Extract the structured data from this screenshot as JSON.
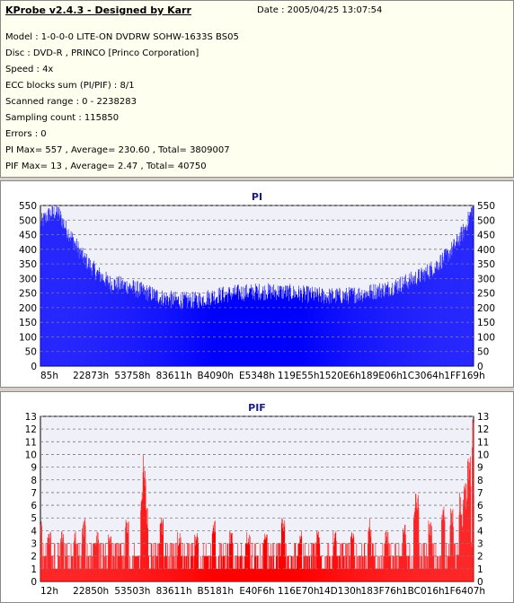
{
  "header": {
    "title": "KProbe v2.4.3 - Designed by Karr",
    "date": "Date : 2005/04/25 13:07:54"
  },
  "info": {
    "model": "Model : 1-0-0-0 LITE-ON DVDRW SOHW-1633S BS05",
    "disc": "Disc : DVD-R , PRINCO [Princo Corporation]",
    "speed": "Speed : 4x",
    "ecc": "ECC blocks sum (PI/PIF) : 8/1",
    "range": "Scanned range : 0 - 2238283",
    "sampling": "Sampling count : 115850",
    "errors": "Errors : 0",
    "pi_summary": "PI Max= 557 , Average= 230.60 , Total= 3809007",
    "pif_summary": "PIF Max= 13 , Average= 2.47 , Total= 40750"
  },
  "colors": {
    "pi_fill": "#0000ff",
    "pif_fill": "#ff0000",
    "plot_bg": "#f0f0f8",
    "grid": "#7a7a7a"
  },
  "chart_data": [
    {
      "type": "area",
      "title": "PI",
      "ylim": [
        0,
        550
      ],
      "yticks": [
        0,
        50,
        100,
        150,
        200,
        250,
        300,
        350,
        400,
        450,
        500,
        550
      ],
      "xticks": [
        "85h",
        "22873h",
        "53758h",
        "83611h",
        "B4090h",
        "E5348h",
        "119E55h",
        "1520E6h",
        "189E06h",
        "1C3064h",
        "1FF169h"
      ],
      "grid": "horizontal dashed",
      "profile_x": [
        0,
        0.02,
        0.04,
        0.06,
        0.08,
        0.1,
        0.13,
        0.16,
        0.2,
        0.24,
        0.28,
        0.32,
        0.36,
        0.4,
        0.45,
        0.5,
        0.55,
        0.6,
        0.65,
        0.7,
        0.75,
        0.8,
        0.84,
        0.88,
        0.91,
        0.94,
        0.96,
        0.98,
        1.0
      ],
      "profile_y": [
        490,
        520,
        530,
        470,
        420,
        370,
        320,
        285,
        275,
        255,
        235,
        225,
        225,
        240,
        250,
        255,
        255,
        248,
        240,
        240,
        250,
        265,
        285,
        310,
        340,
        380,
        420,
        470,
        550
      ]
    },
    {
      "type": "bar",
      "title": "PIF",
      "ylim": [
        0,
        13
      ],
      "yticks": [
        0,
        1,
        2,
        3,
        4,
        5,
        6,
        7,
        8,
        9,
        10,
        11,
        12,
        13
      ],
      "xticks": [
        "12h",
        "22850h",
        "53503h",
        "83611h",
        "B5181h",
        "E40F6h",
        "116E70h",
        "14D130h",
        "183F76h",
        "1BC016h",
        "1F6407h"
      ],
      "grid": "horizontal dashed",
      "peaks": [
        {
          "x": 0.0,
          "v": 5
        },
        {
          "x": 0.02,
          "v": 4
        },
        {
          "x": 0.05,
          "v": 4
        },
        {
          "x": 0.08,
          "v": 4
        },
        {
          "x": 0.1,
          "v": 5
        },
        {
          "x": 0.13,
          "v": 4
        },
        {
          "x": 0.16,
          "v": 4
        },
        {
          "x": 0.2,
          "v": 5
        },
        {
          "x": 0.235,
          "v": 8
        },
        {
          "x": 0.24,
          "v": 10
        },
        {
          "x": 0.245,
          "v": 6
        },
        {
          "x": 0.28,
          "v": 5
        },
        {
          "x": 0.32,
          "v": 4
        },
        {
          "x": 0.36,
          "v": 4
        },
        {
          "x": 0.4,
          "v": 5
        },
        {
          "x": 0.44,
          "v": 4
        },
        {
          "x": 0.48,
          "v": 4
        },
        {
          "x": 0.52,
          "v": 4
        },
        {
          "x": 0.56,
          "v": 5
        },
        {
          "x": 0.6,
          "v": 4
        },
        {
          "x": 0.64,
          "v": 4
        },
        {
          "x": 0.68,
          "v": 4
        },
        {
          "x": 0.72,
          "v": 4
        },
        {
          "x": 0.76,
          "v": 5
        },
        {
          "x": 0.8,
          "v": 4
        },
        {
          "x": 0.84,
          "v": 5
        },
        {
          "x": 0.865,
          "v": 7
        },
        {
          "x": 0.87,
          "v": 8
        },
        {
          "x": 0.9,
          "v": 5
        },
        {
          "x": 0.93,
          "v": 6
        },
        {
          "x": 0.95,
          "v": 6
        },
        {
          "x": 0.97,
          "v": 7
        },
        {
          "x": 0.98,
          "v": 8
        },
        {
          "x": 0.99,
          "v": 10
        },
        {
          "x": 1.0,
          "v": 13
        }
      ]
    }
  ]
}
